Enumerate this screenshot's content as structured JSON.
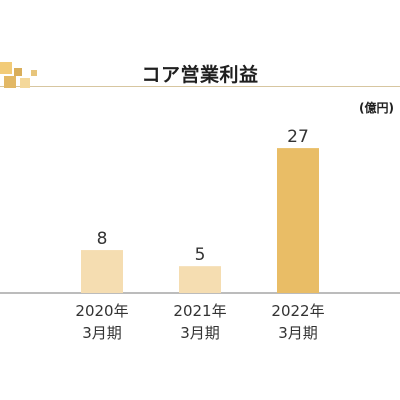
{
  "chart_data": {
    "type": "bar",
    "title": "コア営業利益",
    "unit": "(億円)",
    "categories": [
      [
        "2020年",
        "3月期"
      ],
      [
        "2021年",
        "3月期"
      ],
      [
        "2022年",
        "3月期"
      ]
    ],
    "values": [
      8,
      5,
      27
    ],
    "data_labels": [
      "8",
      "5",
      "27"
    ],
    "colors": [
      "#f5ddb1",
      "#f5ddb1",
      "#e9bd66"
    ],
    "ylim": [
      0,
      30
    ],
    "grid": false,
    "legend": "none"
  }
}
